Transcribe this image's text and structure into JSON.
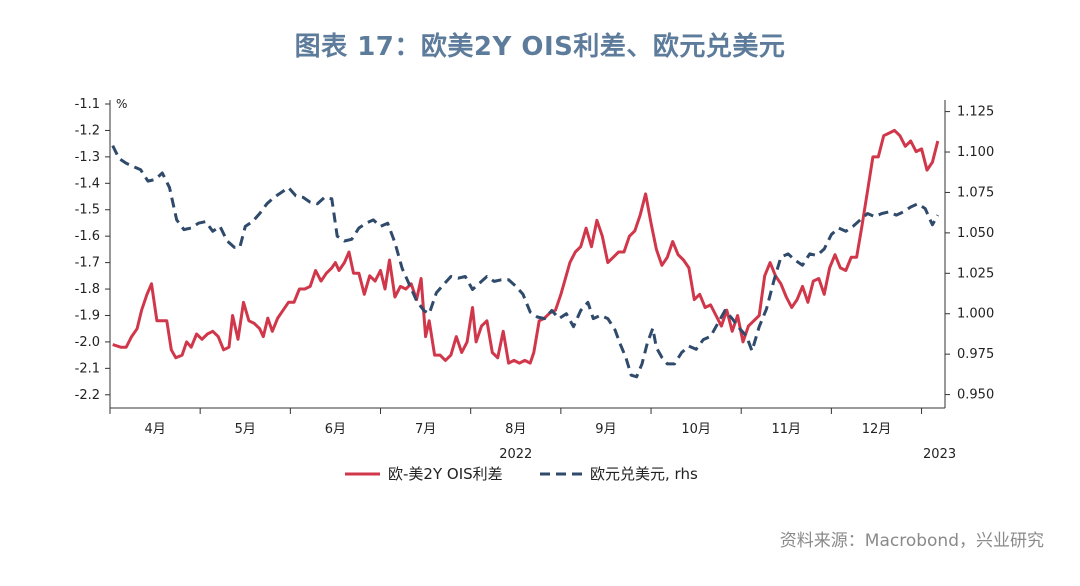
{
  "title": "图表 17：欧美2Y OIS利差、欧元兑美元",
  "source": "资料来源：Macrobond，兴业研究",
  "chart_data": {
    "type": "line",
    "left_unit": "%",
    "year_labels": [
      {
        "label": "2022",
        "x": 8.0
      },
      {
        "label": "2023",
        "x": 12.7
      }
    ],
    "x_range": [
      3.5,
      12.76
    ],
    "months": [
      {
        "label": "4月",
        "x": 4.0
      },
      {
        "label": "5月",
        "x": 5.0
      },
      {
        "label": "6月",
        "x": 6.0
      },
      {
        "label": "7月",
        "x": 7.0
      },
      {
        "label": "8月",
        "x": 8.0
      },
      {
        "label": "9月",
        "x": 9.0
      },
      {
        "label": "10月",
        "x": 10.0
      },
      {
        "label": "11月",
        "x": 11.0
      },
      {
        "label": "12月",
        "x": 12.0
      }
    ],
    "y_left": {
      "ticks": [
        "-1.1",
        "-1.2",
        "-1.3",
        "-1.4",
        "-1.5",
        "-1.6",
        "-1.7",
        "-1.8",
        "-1.9",
        "-2.0",
        "-2.1",
        "-2.2"
      ],
      "range": [
        -2.25,
        -1.1
      ]
    },
    "y_right": {
      "ticks": [
        "1.125",
        "1.100",
        "1.075",
        "1.050",
        "1.025",
        "1.000",
        "0.975",
        "0.950"
      ],
      "range": [
        0.9417,
        1.1297
      ]
    },
    "legend": [
      "欧-美2Y OIS利差",
      "欧元兑美元, rhs"
    ],
    "series": [
      {
        "name": "欧-美2Y OIS利差",
        "axis": "left",
        "color": "#d1374a",
        "style": "solid",
        "points": [
          [
            3.53,
            -2.01
          ],
          [
            3.62,
            -2.02
          ],
          [
            3.68,
            -2.02
          ],
          [
            3.74,
            -1.98
          ],
          [
            3.8,
            -1.95
          ],
          [
            3.85,
            -1.88
          ],
          [
            3.91,
            -1.82
          ],
          [
            3.96,
            -1.78
          ],
          [
            4.02,
            -1.92
          ],
          [
            4.08,
            -1.92
          ],
          [
            4.13,
            -1.92
          ],
          [
            4.18,
            -2.03
          ],
          [
            4.23,
            -2.06
          ],
          [
            4.3,
            -2.05
          ],
          [
            4.35,
            -2.0
          ],
          [
            4.4,
            -2.02
          ],
          [
            4.46,
            -1.97
          ],
          [
            4.52,
            -1.99
          ],
          [
            4.58,
            -1.97
          ],
          [
            4.64,
            -1.96
          ],
          [
            4.7,
            -1.98
          ],
          [
            4.76,
            -2.03
          ],
          [
            4.82,
            -2.02
          ],
          [
            4.86,
            -1.9
          ],
          [
            4.92,
            -1.99
          ],
          [
            4.98,
            -1.85
          ],
          [
            5.04,
            -1.92
          ],
          [
            5.1,
            -1.93
          ],
          [
            5.16,
            -1.95
          ],
          [
            5.2,
            -1.98
          ],
          [
            5.25,
            -1.91
          ],
          [
            5.3,
            -1.96
          ],
          [
            5.36,
            -1.91
          ],
          [
            5.42,
            -1.88
          ],
          [
            5.48,
            -1.85
          ],
          [
            5.54,
            -1.85
          ],
          [
            5.6,
            -1.8
          ],
          [
            5.66,
            -1.8
          ],
          [
            5.72,
            -1.79
          ],
          [
            5.78,
            -1.73
          ],
          [
            5.84,
            -1.77
          ],
          [
            5.9,
            -1.74
          ],
          [
            5.96,
            -1.72
          ],
          [
            6.0,
            -1.7
          ],
          [
            6.04,
            -1.73
          ],
          [
            6.1,
            -1.7
          ],
          [
            6.15,
            -1.66
          ],
          [
            6.2,
            -1.74
          ],
          [
            6.26,
            -1.74
          ],
          [
            6.32,
            -1.82
          ],
          [
            6.38,
            -1.75
          ],
          [
            6.44,
            -1.77
          ],
          [
            6.5,
            -1.73
          ],
          [
            6.55,
            -1.8
          ],
          [
            6.6,
            -1.69
          ],
          [
            6.66,
            -1.83
          ],
          [
            6.72,
            -1.79
          ],
          [
            6.78,
            -1.8
          ],
          [
            6.84,
            -1.78
          ],
          [
            6.9,
            -1.84
          ],
          [
            6.95,
            -1.76
          ],
          [
            7.0,
            -1.98
          ],
          [
            7.04,
            -1.92
          ],
          [
            7.1,
            -2.05
          ],
          [
            7.16,
            -2.05
          ],
          [
            7.22,
            -2.07
          ],
          [
            7.28,
            -2.05
          ],
          [
            7.34,
            -1.98
          ],
          [
            7.4,
            -2.04
          ],
          [
            7.46,
            -2.0
          ],
          [
            7.52,
            -1.87
          ],
          [
            7.56,
            -2.0
          ],
          [
            7.62,
            -1.94
          ],
          [
            7.68,
            -1.92
          ],
          [
            7.74,
            -2.04
          ],
          [
            7.8,
            -2.06
          ],
          [
            7.86,
            -1.96
          ],
          [
            7.92,
            -2.08
          ],
          [
            7.98,
            -2.07
          ],
          [
            8.04,
            -2.08
          ],
          [
            8.1,
            -2.07
          ],
          [
            8.16,
            -2.08
          ],
          [
            8.2,
            -2.04
          ],
          [
            8.26,
            -1.92
          ],
          [
            8.32,
            -1.91
          ],
          [
            8.38,
            -1.89
          ],
          [
            8.44,
            -1.88
          ],
          [
            8.5,
            -1.82
          ],
          [
            8.55,
            -1.76
          ],
          [
            8.6,
            -1.7
          ],
          [
            8.66,
            -1.66
          ],
          [
            8.72,
            -1.64
          ],
          [
            8.78,
            -1.57
          ],
          [
            8.84,
            -1.64
          ],
          [
            8.9,
            -1.54
          ],
          [
            8.96,
            -1.6
          ],
          [
            9.02,
            -1.7
          ],
          [
            9.08,
            -1.68
          ],
          [
            9.14,
            -1.66
          ],
          [
            9.2,
            -1.66
          ],
          [
            9.26,
            -1.6
          ],
          [
            9.32,
            -1.58
          ],
          [
            9.38,
            -1.52
          ],
          [
            9.44,
            -1.44
          ],
          [
            9.5,
            -1.55
          ],
          [
            9.56,
            -1.65
          ],
          [
            9.62,
            -1.71
          ],
          [
            9.68,
            -1.68
          ],
          [
            9.74,
            -1.62
          ],
          [
            9.8,
            -1.67
          ],
          [
            9.86,
            -1.69
          ],
          [
            9.92,
            -1.72
          ],
          [
            9.98,
            -1.84
          ],
          [
            10.04,
            -1.82
          ],
          [
            10.1,
            -1.87
          ],
          [
            10.16,
            -1.86
          ],
          [
            10.22,
            -1.9
          ],
          [
            10.28,
            -1.94
          ],
          [
            10.34,
            -1.88
          ],
          [
            10.4,
            -1.96
          ],
          [
            10.46,
            -1.9
          ],
          [
            10.52,
            -2.0
          ],
          [
            10.58,
            -1.94
          ],
          [
            10.64,
            -1.92
          ],
          [
            10.7,
            -1.9
          ],
          [
            10.76,
            -1.75
          ],
          [
            10.82,
            -1.7
          ],
          [
            10.88,
            -1.75
          ],
          [
            10.94,
            -1.78
          ],
          [
            11.0,
            -1.83
          ],
          [
            11.06,
            -1.87
          ],
          [
            11.12,
            -1.84
          ],
          [
            11.18,
            -1.79
          ],
          [
            11.24,
            -1.85
          ],
          [
            11.3,
            -1.77
          ],
          [
            11.36,
            -1.76
          ],
          [
            11.42,
            -1.82
          ],
          [
            11.48,
            -1.72
          ],
          [
            11.54,
            -1.67
          ],
          [
            11.6,
            -1.72
          ],
          [
            11.66,
            -1.73
          ],
          [
            11.72,
            -1.68
          ],
          [
            11.78,
            -1.68
          ],
          [
            11.84,
            -1.56
          ],
          [
            11.9,
            -1.43
          ],
          [
            11.96,
            -1.3
          ],
          [
            12.02,
            -1.3
          ],
          [
            12.08,
            -1.22
          ],
          [
            12.14,
            -1.21
          ],
          [
            12.2,
            -1.2
          ],
          [
            12.26,
            -1.22
          ],
          [
            12.32,
            -1.26
          ],
          [
            12.38,
            -1.24
          ],
          [
            12.44,
            -1.28
          ],
          [
            12.5,
            -1.27
          ],
          [
            12.56,
            -1.35
          ],
          [
            12.62,
            -1.32
          ],
          [
            12.68,
            -1.24
          ]
        ]
      },
      {
        "name": "欧元兑美元, rhs",
        "axis": "right",
        "color": "#2f4a6b",
        "style": "dashed",
        "points": [
          [
            3.53,
            1.104
          ],
          [
            3.6,
            1.096
          ],
          [
            3.68,
            1.093
          ],
          [
            3.76,
            1.091
          ],
          [
            3.84,
            1.089
          ],
          [
            3.92,
            1.082
          ],
          [
            4.0,
            1.083
          ],
          [
            4.08,
            1.087
          ],
          [
            4.16,
            1.078
          ],
          [
            4.24,
            1.058
          ],
          [
            4.32,
            1.052
          ],
          [
            4.4,
            1.053
          ],
          [
            4.48,
            1.056
          ],
          [
            4.56,
            1.057
          ],
          [
            4.64,
            1.051
          ],
          [
            4.72,
            1.054
          ],
          [
            4.8,
            1.045
          ],
          [
            4.88,
            1.041
          ],
          [
            4.94,
            1.041
          ],
          [
            5.0,
            1.054
          ],
          [
            5.08,
            1.057
          ],
          [
            5.16,
            1.062
          ],
          [
            5.24,
            1.068
          ],
          [
            5.32,
            1.072
          ],
          [
            5.4,
            1.075
          ],
          [
            5.48,
            1.078
          ],
          [
            5.56,
            1.073
          ],
          [
            5.64,
            1.072
          ],
          [
            5.72,
            1.069
          ],
          [
            5.8,
            1.068
          ],
          [
            5.88,
            1.072
          ],
          [
            5.96,
            1.071
          ],
          [
            6.02,
            1.048
          ],
          [
            6.1,
            1.045
          ],
          [
            6.18,
            1.046
          ],
          [
            6.26,
            1.053
          ],
          [
            6.34,
            1.056
          ],
          [
            6.42,
            1.058
          ],
          [
            6.5,
            1.054
          ],
          [
            6.58,
            1.056
          ],
          [
            6.66,
            1.044
          ],
          [
            6.74,
            1.028
          ],
          [
            6.82,
            1.018
          ],
          [
            6.9,
            1.008
          ],
          [
            6.98,
            1.002
          ],
          [
            7.04,
            1.0
          ],
          [
            7.12,
            1.013
          ],
          [
            7.2,
            1.018
          ],
          [
            7.28,
            1.023
          ],
          [
            7.36,
            1.022
          ],
          [
            7.44,
            1.023
          ],
          [
            7.52,
            1.015
          ],
          [
            7.6,
            1.019
          ],
          [
            7.68,
            1.023
          ],
          [
            7.76,
            1.02
          ],
          [
            7.84,
            1.021
          ],
          [
            7.92,
            1.021
          ],
          [
            8.0,
            1.017
          ],
          [
            8.08,
            1.012
          ],
          [
            8.16,
            1.001
          ],
          [
            8.24,
            0.998
          ],
          [
            8.32,
            0.997
          ],
          [
            8.4,
            1.002
          ],
          [
            8.48,
            0.997
          ],
          [
            8.56,
            1.0
          ],
          [
            8.64,
            0.992
          ],
          [
            8.72,
            1.002
          ],
          [
            8.8,
            1.007
          ],
          [
            8.86,
            0.997
          ],
          [
            8.94,
            0.999
          ],
          [
            9.02,
            0.997
          ],
          [
            9.1,
            0.99
          ],
          [
            9.16,
            0.981
          ],
          [
            9.22,
            0.973
          ],
          [
            9.28,
            0.962
          ],
          [
            9.34,
            0.961
          ],
          [
            9.4,
            0.969
          ],
          [
            9.46,
            0.982
          ],
          [
            9.52,
            0.991
          ],
          [
            9.56,
            0.979
          ],
          [
            9.62,
            0.973
          ],
          [
            9.68,
            0.969
          ],
          [
            9.76,
            0.969
          ],
          [
            9.84,
            0.976
          ],
          [
            9.92,
            0.98
          ],
          [
            10.0,
            0.978
          ],
          [
            10.08,
            0.984
          ],
          [
            10.16,
            0.986
          ],
          [
            10.24,
            0.994
          ],
          [
            10.32,
            1.002
          ],
          [
            10.4,
            0.997
          ],
          [
            10.48,
            0.991
          ],
          [
            10.56,
            0.986
          ],
          [
            10.62,
            0.977
          ],
          [
            10.7,
            0.992
          ],
          [
            10.78,
            1.003
          ],
          [
            10.86,
            1.02
          ],
          [
            10.94,
            1.035
          ],
          [
            11.02,
            1.037
          ],
          [
            11.1,
            1.033
          ],
          [
            11.18,
            1.03
          ],
          [
            11.26,
            1.037
          ],
          [
            11.34,
            1.036
          ],
          [
            11.42,
            1.04
          ],
          [
            11.5,
            1.049
          ],
          [
            11.58,
            1.053
          ],
          [
            11.66,
            1.051
          ],
          [
            11.74,
            1.054
          ],
          [
            11.82,
            1.058
          ],
          [
            11.9,
            1.062
          ],
          [
            11.98,
            1.06
          ],
          [
            12.06,
            1.062
          ],
          [
            12.14,
            1.063
          ],
          [
            12.22,
            1.061
          ],
          [
            12.3,
            1.063
          ],
          [
            12.38,
            1.066
          ],
          [
            12.46,
            1.068
          ],
          [
            12.54,
            1.065
          ],
          [
            12.62,
            1.055
          ],
          [
            12.68,
            1.061
          ]
        ]
      }
    ]
  }
}
